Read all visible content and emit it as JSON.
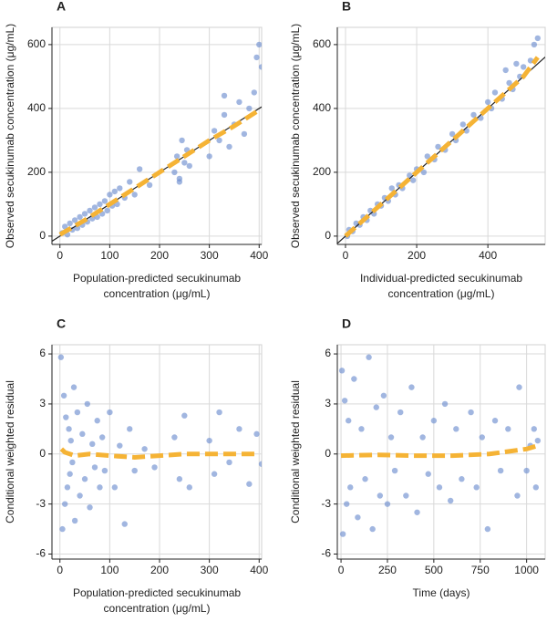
{
  "chart_data": [
    {
      "type": "scatter",
      "title": "A",
      "x_label": [
        "Population-predicted secukinumab",
        "concentration (μg/mL)"
      ],
      "y_label": "Observed secukinumab concentration (μg/mL)",
      "xlim": [
        -16,
        405
      ],
      "ylim": [
        -26,
        654
      ],
      "xticks": [
        0,
        100,
        200,
        300,
        400
      ],
      "yticks": [
        0,
        200,
        400,
        600
      ],
      "grid": true,
      "series": [
        {
          "kind": "points",
          "color": "#6f8fd0",
          "x": [
            5,
            10,
            15,
            20,
            25,
            30,
            35,
            40,
            45,
            50,
            55,
            60,
            65,
            70,
            75,
            80,
            85,
            90,
            95,
            100,
            105,
            110,
            115,
            120,
            130,
            140,
            150,
            160,
            180,
            230,
            235,
            240,
            245,
            250,
            255,
            260,
            240,
            300,
            310,
            320,
            330,
            340,
            350,
            360,
            370,
            380,
            390,
            395,
            400,
            405,
            330
          ],
          "values": [
            10,
            30,
            5,
            40,
            20,
            50,
            25,
            60,
            35,
            70,
            45,
            80,
            55,
            90,
            60,
            100,
            70,
            110,
            80,
            130,
            95,
            140,
            100,
            150,
            120,
            170,
            130,
            210,
            160,
            200,
            250,
            180,
            300,
            230,
            270,
            220,
            170,
            250,
            330,
            300,
            380,
            280,
            350,
            420,
            320,
            400,
            450,
            560,
            600,
            530,
            440
          ]
        },
        {
          "kind": "identity",
          "color": "#222222",
          "x": [
            -16,
            405
          ],
          "values": [
            -16,
            405
          ]
        },
        {
          "kind": "smooth",
          "color": "#f5b335",
          "x": [
            0,
            50,
            100,
            150,
            200,
            250,
            300,
            350,
            400
          ],
          "values": [
            5,
            50,
            100,
            150,
            200,
            250,
            300,
            345,
            395
          ]
        }
      ]
    },
    {
      "type": "scatter",
      "title": "B",
      "x_label": [
        "Individual-predicted secukinumab",
        "concentration (μg/mL)"
      ],
      "y_label": "Observed secukinumab concentration (μg/mL)",
      "xlim": [
        -23,
        561
      ],
      "ylim": [
        -26,
        654
      ],
      "xticks": [
        0,
        200,
        400
      ],
      "yticks": [
        0,
        200,
        400,
        600
      ],
      "grid": true,
      "series": [
        {
          "kind": "points",
          "color": "#6f8fd0",
          "x": [
            5,
            10,
            20,
            30,
            40,
            50,
            60,
            70,
            80,
            90,
            100,
            110,
            120,
            130,
            140,
            150,
            160,
            180,
            190,
            200,
            220,
            230,
            250,
            260,
            280,
            300,
            310,
            330,
            340,
            360,
            380,
            400,
            410,
            420,
            440,
            460,
            470,
            490,
            500,
            520,
            530,
            540,
            450,
            480
          ],
          "values": [
            0,
            20,
            15,
            40,
            35,
            60,
            50,
            80,
            70,
            100,
            95,
            120,
            110,
            150,
            130,
            160,
            150,
            190,
            175,
            210,
            200,
            250,
            240,
            280,
            270,
            320,
            300,
            350,
            330,
            380,
            370,
            420,
            400,
            450,
            430,
            480,
            460,
            500,
            530,
            550,
            600,
            620,
            520,
            540
          ]
        },
        {
          "kind": "identity",
          "color": "#222222",
          "x": [
            -23,
            561
          ],
          "values": [
            -23,
            561
          ]
        },
        {
          "kind": "smooth",
          "color": "#f5b335",
          "x": [
            0,
            100,
            200,
            300,
            400,
            500,
            540
          ],
          "values": [
            0,
            100,
            200,
            300,
            400,
            500,
            560
          ]
        }
      ]
    },
    {
      "type": "scatter",
      "title": "C",
      "x_label": [
        "Population-predicted secukinumab",
        "concentration (μg/mL)"
      ],
      "y_label": "Conditional weighted residual",
      "xlim": [
        -16,
        405
      ],
      "ylim": [
        -6.3,
        6.55
      ],
      "xticks": [
        0,
        100,
        200,
        300,
        400
      ],
      "yticks": [
        -6,
        -3,
        0,
        3,
        6
      ],
      "grid": true,
      "series": [
        {
          "kind": "points",
          "color": "#6f8fd0",
          "x": [
            2,
            5,
            8,
            10,
            12,
            15,
            18,
            20,
            22,
            25,
            28,
            30,
            35,
            40,
            45,
            50,
            55,
            60,
            65,
            70,
            75,
            80,
            85,
            90,
            100,
            110,
            120,
            130,
            140,
            150,
            170,
            190,
            230,
            240,
            250,
            260,
            300,
            310,
            320,
            340,
            360,
            380,
            395,
            405
          ],
          "values": [
            5.8,
            -4.5,
            3.5,
            -3,
            2.2,
            -2,
            1.5,
            -1.2,
            0.8,
            -0.5,
            4,
            -4,
            2.5,
            -2.5,
            1.2,
            -1.5,
            3,
            -3.2,
            0.6,
            -0.8,
            2,
            -2,
            1,
            -1,
            2.5,
            -2,
            0.5,
            -4.2,
            1.5,
            -1,
            0.3,
            -0.8,
            1,
            -1.5,
            2.3,
            -2,
            0.8,
            -1.2,
            2.5,
            -0.5,
            1.5,
            -1.8,
            1.2,
            -0.6
          ]
        },
        {
          "kind": "smooth",
          "color": "#f5b335",
          "x": [
            3,
            10,
            30,
            60,
            100,
            150,
            200,
            250,
            300,
            350,
            400
          ],
          "values": [
            0.3,
            0.1,
            -0.1,
            0,
            -0.1,
            -0.2,
            -0.1,
            0,
            0,
            0,
            0
          ]
        }
      ]
    },
    {
      "type": "scatter",
      "title": "D",
      "x_label": [
        "Time (days)"
      ],
      "y_label": "Conditional weighted residual",
      "xlim": [
        -20,
        1100
      ],
      "ylim": [
        -6.3,
        6.55
      ],
      "xticks": [
        0,
        250,
        500,
        750,
        1000
      ],
      "yticks": [
        -6,
        -3,
        0,
        3,
        6
      ],
      "grid": true,
      "series": [
        {
          "kind": "points",
          "color": "#6f8fd0",
          "x": [
            5,
            10,
            20,
            30,
            40,
            50,
            70,
            90,
            110,
            130,
            150,
            170,
            190,
            210,
            230,
            250,
            270,
            290,
            320,
            350,
            380,
            410,
            440,
            470,
            500,
            530,
            560,
            590,
            620,
            650,
            700,
            730,
            760,
            790,
            830,
            860,
            900,
            950,
            960,
            1000,
            1020,
            1040,
            1050,
            1060
          ],
          "values": [
            5,
            -4.8,
            3.2,
            -3,
            2,
            -2,
            4.5,
            -3.8,
            1.5,
            -1.5,
            5.8,
            -4.5,
            2.8,
            -2.5,
            3.5,
            -3,
            1,
            -1,
            2.5,
            -2.5,
            4,
            -3.5,
            1,
            -1.2,
            2,
            -2,
            3,
            -2.8,
            1.5,
            -1.5,
            2.5,
            -2,
            1,
            -4.5,
            2,
            -1,
            1.5,
            -2.5,
            4,
            -1,
            0.5,
            1.5,
            -2,
            0.8
          ]
        },
        {
          "kind": "smooth",
          "color": "#f5b335",
          "x": [
            0,
            200,
            400,
            600,
            800,
            1000,
            1060
          ],
          "values": [
            -0.1,
            -0.05,
            -0.1,
            -0.1,
            0,
            0.3,
            0.5
          ]
        }
      ]
    }
  ]
}
